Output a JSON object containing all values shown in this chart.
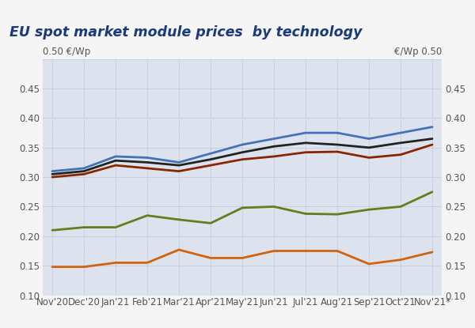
{
  "title": "EU spot market module prices  by technology",
  "x_labels": [
    "Nov'20",
    "Dec'20",
    "Jan'21",
    "Feb'21",
    "Mar'21",
    "Apr'21",
    "May'21",
    "Jun'21",
    "Jul'21",
    "Aug'21",
    "Sep'21",
    "Oct'21",
    "Nov'21*"
  ],
  "ylabel_left": "0.50 €/Wp",
  "ylabel_right": "€/Wp 0.50",
  "ylim": [
    0.1,
    0.5
  ],
  "yticks": [
    0.1,
    0.15,
    0.2,
    0.25,
    0.3,
    0.35,
    0.4,
    0.45,
    0.5
  ],
  "lines": {
    "blue": {
      "color": "#4472b8",
      "linewidth": 2.0,
      "values": [
        0.31,
        0.315,
        0.335,
        0.333,
        0.325,
        0.34,
        0.355,
        0.365,
        0.375,
        0.375,
        0.365,
        0.375,
        0.385
      ]
    },
    "black": {
      "color": "#222222",
      "linewidth": 2.0,
      "values": [
        0.305,
        0.31,
        0.328,
        0.325,
        0.32,
        0.33,
        0.342,
        0.352,
        0.358,
        0.355,
        0.35,
        0.358,
        0.365
      ]
    },
    "darkred": {
      "color": "#8b2500",
      "linewidth": 2.0,
      "values": [
        0.3,
        0.305,
        0.32,
        0.315,
        0.31,
        0.32,
        0.33,
        0.335,
        0.342,
        0.343,
        0.333,
        0.338,
        0.355
      ]
    },
    "olive": {
      "color": "#6b7a1a",
      "linewidth": 2.0,
      "values": [
        0.21,
        0.215,
        0.215,
        0.235,
        0.228,
        0.222,
        0.248,
        0.25,
        0.238,
        0.237,
        0.245,
        0.25,
        0.275
      ]
    },
    "orange": {
      "color": "#d4620a",
      "linewidth": 2.0,
      "values": [
        0.148,
        0.148,
        0.155,
        0.155,
        0.177,
        0.163,
        0.163,
        0.175,
        0.175,
        0.175,
        0.153,
        0.16,
        0.173
      ]
    }
  },
  "fig_bg_color": "#f5f5f5",
  "plot_bg": "#dde3ee",
  "title_color": "#1a3a7a",
  "tick_color": "#555555",
  "vgrid_color": "#aab4c8",
  "hgrid_color": "#c8cfe0",
  "title_fontsize": 12.5,
  "axis_fontsize": 8.5,
  "label_fontsize": 8.5
}
